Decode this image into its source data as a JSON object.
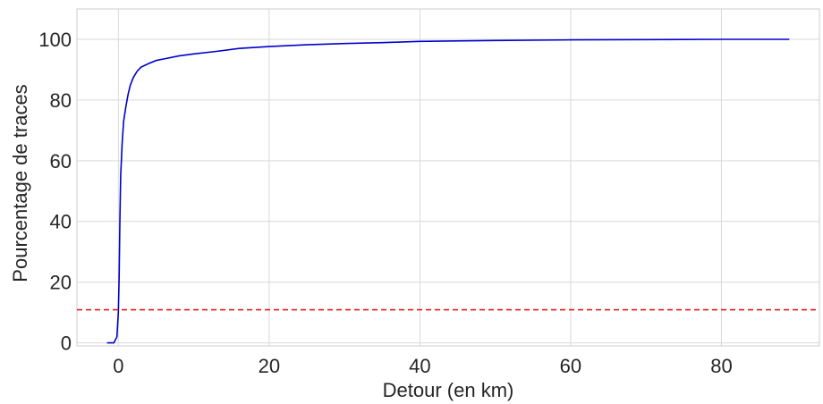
{
  "chart_data": {
    "type": "line",
    "title": "",
    "xlabel": "Detour (en km)",
    "ylabel": "Pourcentage de traces",
    "xlim": [
      -5.5,
      93
    ],
    "ylim": [
      -1,
      110
    ],
    "xticks": [
      0,
      20,
      40,
      60,
      80
    ],
    "yticks": [
      0,
      20,
      40,
      60,
      80,
      100
    ],
    "grid": true,
    "series": [
      {
        "color": "#0000cc",
        "style": "solid",
        "x": [
          -1.5,
          -0.6,
          -0.2,
          0.0,
          0.1,
          0.2,
          0.3,
          0.5,
          0.7,
          1.0,
          1.3,
          1.6,
          2.0,
          2.5,
          3.0,
          4.0,
          5.0,
          6.0,
          8.0,
          10.0,
          13.0,
          16.0,
          20.0,
          25.0,
          30.0,
          35.0,
          40.0,
          50.0,
          60.0,
          70.0,
          80.0,
          89.0
        ],
        "y": [
          0,
          0,
          2,
          10,
          22,
          40,
          55,
          66,
          73,
          78,
          82,
          85,
          87.5,
          89.5,
          90.8,
          92.0,
          93.0,
          93.5,
          94.5,
          95.2,
          96.0,
          97.0,
          97.6,
          98.2,
          98.6,
          98.9,
          99.3,
          99.6,
          99.8,
          99.9,
          100,
          100
        ]
      },
      {
        "color": "#e41a1c",
        "style": "dashed",
        "x": [
          -5.5,
          93
        ],
        "y": [
          10.9,
          10.9
        ]
      }
    ]
  }
}
